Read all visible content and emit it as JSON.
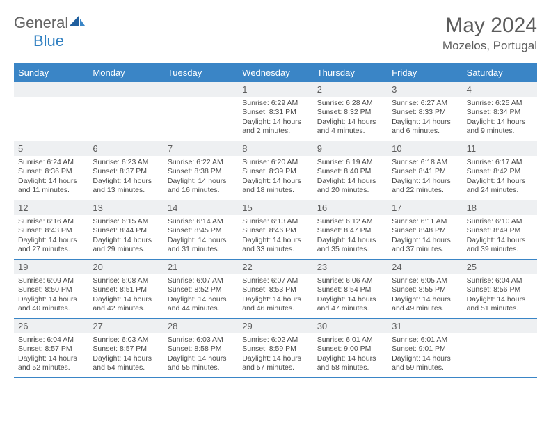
{
  "brand": {
    "part1": "General",
    "part2": "Blue"
  },
  "title": "May 2024",
  "location": "Mozelos, Portugal",
  "colors": {
    "accent": "#3a85c6",
    "headerText": "#5c5c5c",
    "dayHeaderBg": "#eef0f2"
  },
  "weekdays": [
    "Sunday",
    "Monday",
    "Tuesday",
    "Wednesday",
    "Thursday",
    "Friday",
    "Saturday"
  ],
  "weeks": [
    [
      {
        "n": "",
        "sunrise": "",
        "sunset": "",
        "daylight": ""
      },
      {
        "n": "",
        "sunrise": "",
        "sunset": "",
        "daylight": ""
      },
      {
        "n": "",
        "sunrise": "",
        "sunset": "",
        "daylight": ""
      },
      {
        "n": "1",
        "sunrise": "Sunrise: 6:29 AM",
        "sunset": "Sunset: 8:31 PM",
        "daylight": "Daylight: 14 hours and 2 minutes."
      },
      {
        "n": "2",
        "sunrise": "Sunrise: 6:28 AM",
        "sunset": "Sunset: 8:32 PM",
        "daylight": "Daylight: 14 hours and 4 minutes."
      },
      {
        "n": "3",
        "sunrise": "Sunrise: 6:27 AM",
        "sunset": "Sunset: 8:33 PM",
        "daylight": "Daylight: 14 hours and 6 minutes."
      },
      {
        "n": "4",
        "sunrise": "Sunrise: 6:25 AM",
        "sunset": "Sunset: 8:34 PM",
        "daylight": "Daylight: 14 hours and 9 minutes."
      }
    ],
    [
      {
        "n": "5",
        "sunrise": "Sunrise: 6:24 AM",
        "sunset": "Sunset: 8:36 PM",
        "daylight": "Daylight: 14 hours and 11 minutes."
      },
      {
        "n": "6",
        "sunrise": "Sunrise: 6:23 AM",
        "sunset": "Sunset: 8:37 PM",
        "daylight": "Daylight: 14 hours and 13 minutes."
      },
      {
        "n": "7",
        "sunrise": "Sunrise: 6:22 AM",
        "sunset": "Sunset: 8:38 PM",
        "daylight": "Daylight: 14 hours and 16 minutes."
      },
      {
        "n": "8",
        "sunrise": "Sunrise: 6:20 AM",
        "sunset": "Sunset: 8:39 PM",
        "daylight": "Daylight: 14 hours and 18 minutes."
      },
      {
        "n": "9",
        "sunrise": "Sunrise: 6:19 AM",
        "sunset": "Sunset: 8:40 PM",
        "daylight": "Daylight: 14 hours and 20 minutes."
      },
      {
        "n": "10",
        "sunrise": "Sunrise: 6:18 AM",
        "sunset": "Sunset: 8:41 PM",
        "daylight": "Daylight: 14 hours and 22 minutes."
      },
      {
        "n": "11",
        "sunrise": "Sunrise: 6:17 AM",
        "sunset": "Sunset: 8:42 PM",
        "daylight": "Daylight: 14 hours and 24 minutes."
      }
    ],
    [
      {
        "n": "12",
        "sunrise": "Sunrise: 6:16 AM",
        "sunset": "Sunset: 8:43 PM",
        "daylight": "Daylight: 14 hours and 27 minutes."
      },
      {
        "n": "13",
        "sunrise": "Sunrise: 6:15 AM",
        "sunset": "Sunset: 8:44 PM",
        "daylight": "Daylight: 14 hours and 29 minutes."
      },
      {
        "n": "14",
        "sunrise": "Sunrise: 6:14 AM",
        "sunset": "Sunset: 8:45 PM",
        "daylight": "Daylight: 14 hours and 31 minutes."
      },
      {
        "n": "15",
        "sunrise": "Sunrise: 6:13 AM",
        "sunset": "Sunset: 8:46 PM",
        "daylight": "Daylight: 14 hours and 33 minutes."
      },
      {
        "n": "16",
        "sunrise": "Sunrise: 6:12 AM",
        "sunset": "Sunset: 8:47 PM",
        "daylight": "Daylight: 14 hours and 35 minutes."
      },
      {
        "n": "17",
        "sunrise": "Sunrise: 6:11 AM",
        "sunset": "Sunset: 8:48 PM",
        "daylight": "Daylight: 14 hours and 37 minutes."
      },
      {
        "n": "18",
        "sunrise": "Sunrise: 6:10 AM",
        "sunset": "Sunset: 8:49 PM",
        "daylight": "Daylight: 14 hours and 39 minutes."
      }
    ],
    [
      {
        "n": "19",
        "sunrise": "Sunrise: 6:09 AM",
        "sunset": "Sunset: 8:50 PM",
        "daylight": "Daylight: 14 hours and 40 minutes."
      },
      {
        "n": "20",
        "sunrise": "Sunrise: 6:08 AM",
        "sunset": "Sunset: 8:51 PM",
        "daylight": "Daylight: 14 hours and 42 minutes."
      },
      {
        "n": "21",
        "sunrise": "Sunrise: 6:07 AM",
        "sunset": "Sunset: 8:52 PM",
        "daylight": "Daylight: 14 hours and 44 minutes."
      },
      {
        "n": "22",
        "sunrise": "Sunrise: 6:07 AM",
        "sunset": "Sunset: 8:53 PM",
        "daylight": "Daylight: 14 hours and 46 minutes."
      },
      {
        "n": "23",
        "sunrise": "Sunrise: 6:06 AM",
        "sunset": "Sunset: 8:54 PM",
        "daylight": "Daylight: 14 hours and 47 minutes."
      },
      {
        "n": "24",
        "sunrise": "Sunrise: 6:05 AM",
        "sunset": "Sunset: 8:55 PM",
        "daylight": "Daylight: 14 hours and 49 minutes."
      },
      {
        "n": "25",
        "sunrise": "Sunrise: 6:04 AM",
        "sunset": "Sunset: 8:56 PM",
        "daylight": "Daylight: 14 hours and 51 minutes."
      }
    ],
    [
      {
        "n": "26",
        "sunrise": "Sunrise: 6:04 AM",
        "sunset": "Sunset: 8:57 PM",
        "daylight": "Daylight: 14 hours and 52 minutes."
      },
      {
        "n": "27",
        "sunrise": "Sunrise: 6:03 AM",
        "sunset": "Sunset: 8:57 PM",
        "daylight": "Daylight: 14 hours and 54 minutes."
      },
      {
        "n": "28",
        "sunrise": "Sunrise: 6:03 AM",
        "sunset": "Sunset: 8:58 PM",
        "daylight": "Daylight: 14 hours and 55 minutes."
      },
      {
        "n": "29",
        "sunrise": "Sunrise: 6:02 AM",
        "sunset": "Sunset: 8:59 PM",
        "daylight": "Daylight: 14 hours and 57 minutes."
      },
      {
        "n": "30",
        "sunrise": "Sunrise: 6:01 AM",
        "sunset": "Sunset: 9:00 PM",
        "daylight": "Daylight: 14 hours and 58 minutes."
      },
      {
        "n": "31",
        "sunrise": "Sunrise: 6:01 AM",
        "sunset": "Sunset: 9:01 PM",
        "daylight": "Daylight: 14 hours and 59 minutes."
      },
      {
        "n": "",
        "sunrise": "",
        "sunset": "",
        "daylight": ""
      }
    ]
  ]
}
